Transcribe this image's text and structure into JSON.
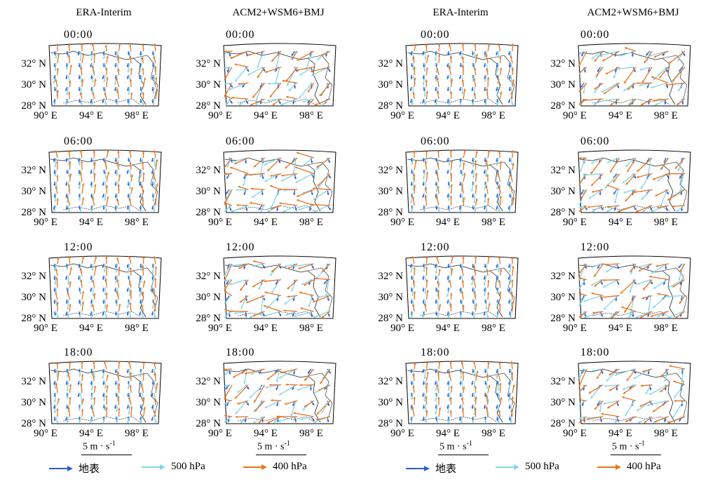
{
  "columns": [
    {
      "header": "ERA-Interim",
      "kind": "era"
    },
    {
      "header": "ACM2+WSM6+BMJ",
      "kind": "acm"
    },
    {
      "header": "ERA-Interim",
      "kind": "era"
    },
    {
      "header": "ACM2+WSM6+BMJ",
      "kind": "acm"
    }
  ],
  "times": [
    "00:00",
    "06:00",
    "12:00",
    "18:00"
  ],
  "lat_labels": [
    "32° N",
    "30° N",
    "28° N"
  ],
  "lon_labels": [
    "90° E",
    "94° E",
    "98° E"
  ],
  "scale": {
    "label": "5 m · s",
    "sup": "-1"
  },
  "legend": [
    {
      "label": "地表",
      "color": "#2b5fd9"
    },
    {
      "label": "500 hPa",
      "color": "#7fd6e6"
    },
    {
      "label": "400 hPa",
      "color": "#e8731e"
    }
  ]
}
